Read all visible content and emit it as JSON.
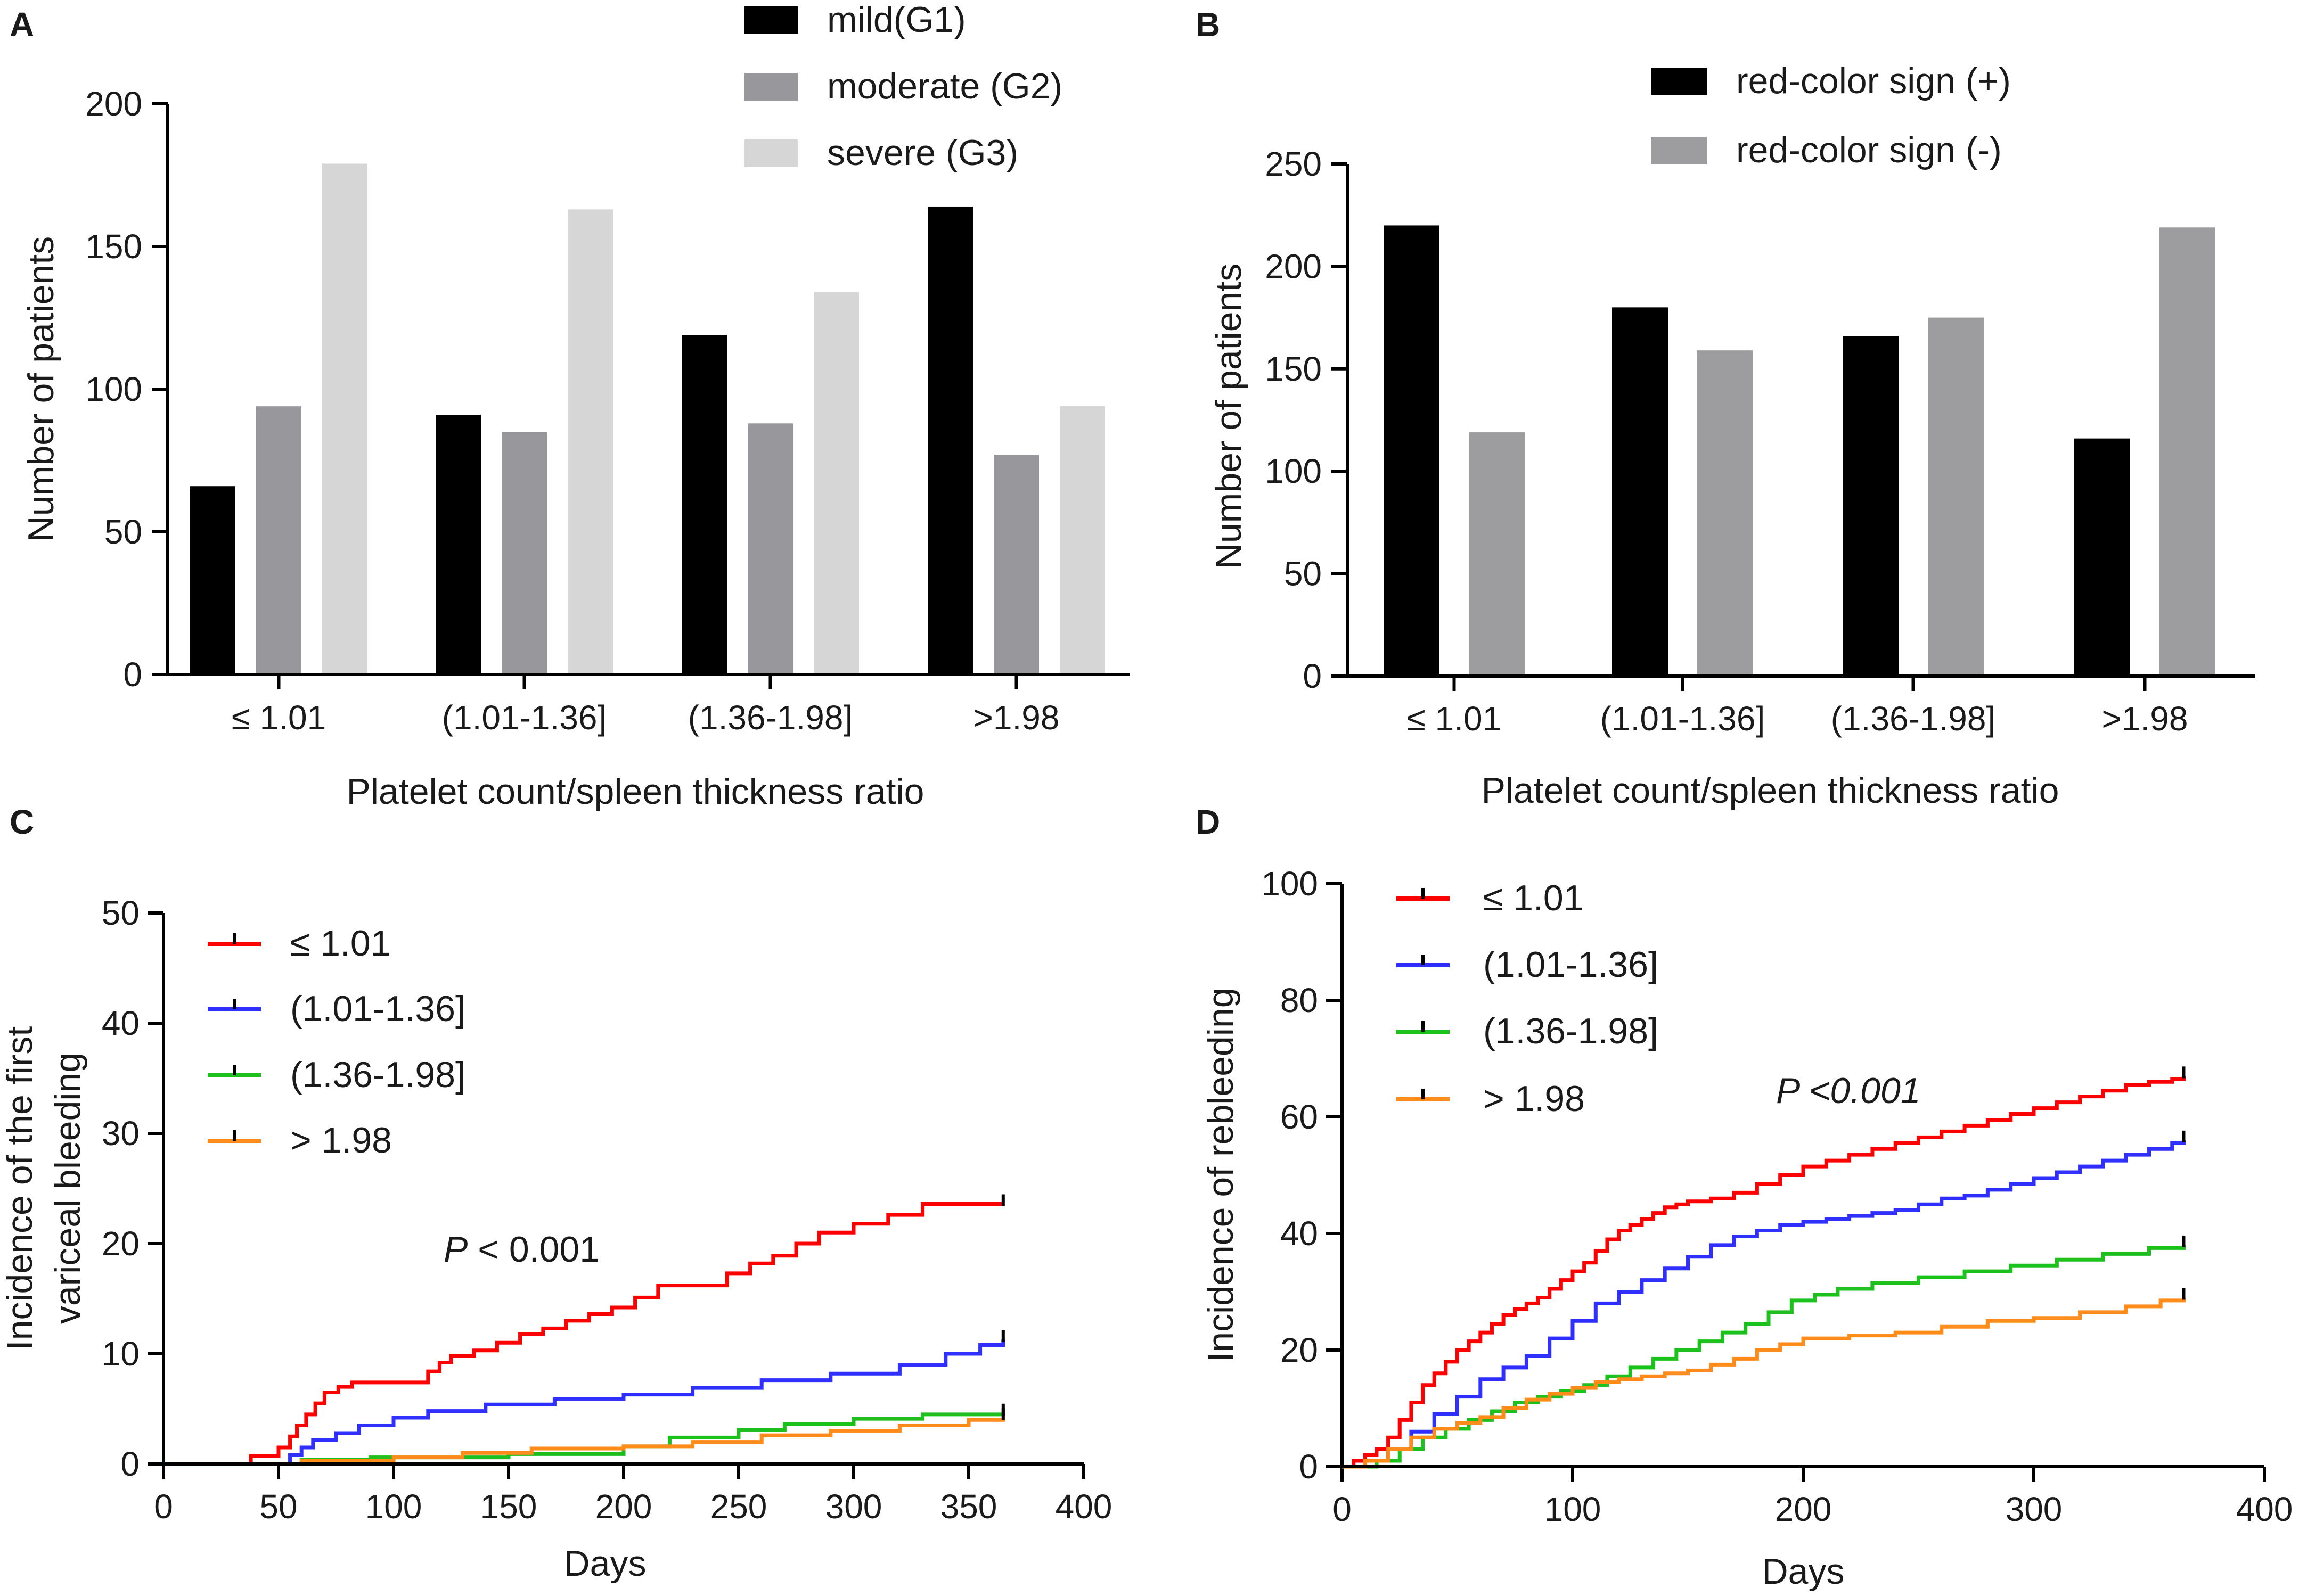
{
  "colors": {
    "g1": "#000000",
    "g2": "#98989c",
    "g3": "#d6d6d6",
    "red_plus": "#000000",
    "red_minus": "#9d9d9f",
    "km_le_101": "#ff0000",
    "km_101_136": "#2f2fff",
    "km_136_198": "#1ec01e",
    "km_gt_198": "#ff8c1a"
  },
  "chart_data": [
    {
      "panel": "A",
      "type": "bar",
      "xlabel": "Platelet count/spleen thickness ratio",
      "ylabel": "Number of patients",
      "ylim": [
        0,
        200
      ],
      "yticks": [
        0,
        50,
        100,
        150,
        200
      ],
      "categories": [
        "≤ 1.01",
        "(1.01-1.36]",
        "(1.36-1.98]",
        ">1.98"
      ],
      "series": [
        {
          "name": "mild(G1)",
          "color_key": "g1",
          "values": [
            66,
            91,
            119,
            164
          ]
        },
        {
          "name": "moderate (G2)",
          "color_key": "g2",
          "values": [
            94,
            85,
            88,
            77
          ]
        },
        {
          "name": "severe (G3)",
          "color_key": "g3",
          "values": [
            179,
            163,
            134,
            94
          ]
        }
      ],
      "legend": "top-center"
    },
    {
      "panel": "B",
      "type": "bar",
      "xlabel": "Platelet count/spleen thickness ratio",
      "ylabel": "Number of patients",
      "ylim": [
        0,
        250
      ],
      "yticks": [
        0,
        50,
        100,
        150,
        200,
        250
      ],
      "categories": [
        "≤ 1.01",
        "(1.01-1.36]",
        "(1.36-1.98]",
        ">1.98"
      ],
      "series": [
        {
          "name": "red-color sign (+)",
          "color_key": "red_plus",
          "values": [
            220,
            180,
            166,
            116
          ]
        },
        {
          "name": "red-color sign (-)",
          "color_key": "red_minus",
          "values": [
            119,
            159,
            175,
            219
          ]
        }
      ],
      "legend": "top-right"
    },
    {
      "panel": "C",
      "type": "line",
      "step": true,
      "xlabel": "Days",
      "ylabel": [
        "Incidence of the first",
        "variceal bleeding"
      ],
      "xlim": [
        0,
        400
      ],
      "ylim": [
        0,
        50
      ],
      "xticks": [
        0,
        50,
        100,
        150,
        200,
        250,
        300,
        350,
        400
      ],
      "yticks": [
        0,
        10,
        20,
        30,
        40,
        50
      ],
      "annotation": {
        "p": "P",
        "rest": " < 0.001"
      },
      "legend": "top-left",
      "series": [
        {
          "name": "≤ 1.01",
          "color_key": "km_le_101",
          "x": [
            0,
            38,
            50,
            55,
            58,
            62,
            66,
            70,
            76,
            82,
            115,
            120,
            125,
            135,
            145,
            155,
            165,
            175,
            185,
            195,
            205,
            215,
            245,
            255,
            265,
            275,
            285,
            300,
            315,
            330,
            365
          ],
          "y": [
            0,
            0.7,
            1.5,
            2.5,
            3.5,
            4.5,
            5.5,
            6.5,
            7.0,
            7.4,
            8.4,
            9.2,
            9.8,
            10.3,
            11.0,
            11.8,
            12.3,
            13.0,
            13.6,
            14.2,
            15.1,
            16.2,
            17.3,
            18.2,
            18.9,
            20.0,
            21.0,
            21.8,
            22.6,
            23.6,
            23.6
          ]
        },
        {
          "name": "(1.01-1.36]",
          "color_key": "km_101_136",
          "x": [
            0,
            55,
            60,
            65,
            75,
            85,
            100,
            115,
            140,
            170,
            200,
            230,
            260,
            290,
            320,
            340,
            355,
            365
          ],
          "y": [
            0,
            0.8,
            1.5,
            2.2,
            2.8,
            3.5,
            4.2,
            4.8,
            5.4,
            5.9,
            6.3,
            6.9,
            7.6,
            8.2,
            9.0,
            10.0,
            10.8,
            11.3
          ]
        },
        {
          "name": "(1.36-1.98]",
          "color_key": "km_136_198",
          "x": [
            0,
            60,
            90,
            150,
            200,
            220,
            250,
            270,
            300,
            330,
            365
          ],
          "y": [
            0,
            0.4,
            0.6,
            0.9,
            1.6,
            2.4,
            3.1,
            3.6,
            4.1,
            4.5,
            4.6
          ]
        },
        {
          "name": "> 1.98",
          "color_key": "km_gt_198",
          "x": [
            0,
            60,
            100,
            130,
            160,
            200,
            230,
            260,
            290,
            320,
            350,
            365
          ],
          "y": [
            0,
            0.3,
            0.6,
            1.0,
            1.4,
            1.6,
            2.0,
            2.6,
            3.0,
            3.5,
            4.0,
            4.2
          ]
        }
      ]
    },
    {
      "panel": "D",
      "type": "line",
      "step": true,
      "xlabel": "Days",
      "ylabel": "Incidence of rebleeding",
      "xlim": [
        0,
        400
      ],
      "ylim": [
        0,
        100
      ],
      "xticks": [
        0,
        100,
        200,
        300,
        400
      ],
      "yticks": [
        0,
        20,
        40,
        60,
        80,
        100
      ],
      "annotation": {
        "p": "P <0.001",
        "rest": ""
      },
      "legend": "top-left",
      "series": [
        {
          "name": "≤ 1.01",
          "color_key": "km_le_101",
          "x": [
            0,
            5,
            10,
            15,
            20,
            25,
            30,
            35,
            40,
            45,
            50,
            55,
            60,
            65,
            70,
            75,
            80,
            85,
            90,
            95,
            100,
            105,
            110,
            115,
            120,
            125,
            130,
            135,
            140,
            145,
            150,
            160,
            170,
            180,
            190,
            200,
            210,
            220,
            230,
            240,
            250,
            260,
            270,
            280,
            290,
            300,
            310,
            320,
            330,
            340,
            350,
            360,
            365
          ],
          "y": [
            0,
            1,
            2,
            3,
            5,
            8,
            11,
            14,
            16,
            18,
            20,
            21.5,
            23,
            24.5,
            26,
            27,
            28,
            29,
            30.5,
            32,
            33.5,
            35,
            37,
            39,
            40.5,
            41.5,
            42.5,
            43.5,
            44.5,
            45,
            45.5,
            46,
            47,
            48.5,
            50,
            51.5,
            52.5,
            53.5,
            54.5,
            55.5,
            56.5,
            57.5,
            58.5,
            59.5,
            60.5,
            61.5,
            62.5,
            63.5,
            64.5,
            65.5,
            66,
            66.5,
            67
          ]
        },
        {
          "name": "(1.01-1.36]",
          "color_key": "km_101_136",
          "x": [
            0,
            10,
            20,
            30,
            40,
            50,
            60,
            70,
            80,
            90,
            100,
            110,
            120,
            130,
            140,
            150,
            160,
            170,
            180,
            190,
            200,
            210,
            220,
            230,
            240,
            250,
            260,
            270,
            280,
            290,
            300,
            310,
            320,
            330,
            340,
            350,
            360,
            365
          ],
          "y": [
            0,
            1,
            3,
            6,
            9,
            12,
            15,
            17,
            19,
            22,
            25,
            28,
            30,
            32,
            34,
            36,
            38,
            39.5,
            40.5,
            41.5,
            42,
            42.5,
            43,
            43.5,
            44,
            45,
            46,
            46.5,
            47.5,
            48.5,
            49.5,
            50.5,
            51.5,
            52.5,
            53.5,
            54.5,
            55.5,
            56
          ]
        },
        {
          "name": "(1.36-1.98]",
          "color_key": "km_136_198",
          "x": [
            0,
            15,
            25,
            35,
            45,
            55,
            65,
            75,
            85,
            95,
            105,
            115,
            125,
            135,
            145,
            155,
            165,
            175,
            185,
            195,
            205,
            215,
            230,
            250,
            270,
            290,
            310,
            330,
            350,
            365
          ],
          "y": [
            0,
            1,
            3,
            5,
            6.5,
            8,
            9.5,
            11,
            12,
            13,
            14,
            15.5,
            17,
            18.5,
            20,
            21.5,
            23,
            24.5,
            26.5,
            28.5,
            29.5,
            30.5,
            31.5,
            32.5,
            33.5,
            34.5,
            35.5,
            36.5,
            37.5,
            38
          ]
        },
        {
          "name": "> 1.98",
          "color_key": "km_gt_198",
          "x": [
            0,
            10,
            20,
            30,
            40,
            50,
            60,
            70,
            80,
            90,
            100,
            110,
            120,
            130,
            140,
            150,
            160,
            170,
            180,
            190,
            200,
            220,
            240,
            260,
            280,
            300,
            320,
            340,
            355,
            365
          ],
          "y": [
            0,
            1,
            3,
            5,
            6.5,
            7.5,
            8.5,
            10,
            11.5,
            12.5,
            13.5,
            14.5,
            15,
            15.5,
            16,
            16.5,
            17.5,
            18.5,
            20,
            21,
            22,
            22.5,
            23,
            24,
            25,
            25.5,
            26.5,
            27.5,
            28.5,
            29
          ]
        }
      ]
    }
  ]
}
